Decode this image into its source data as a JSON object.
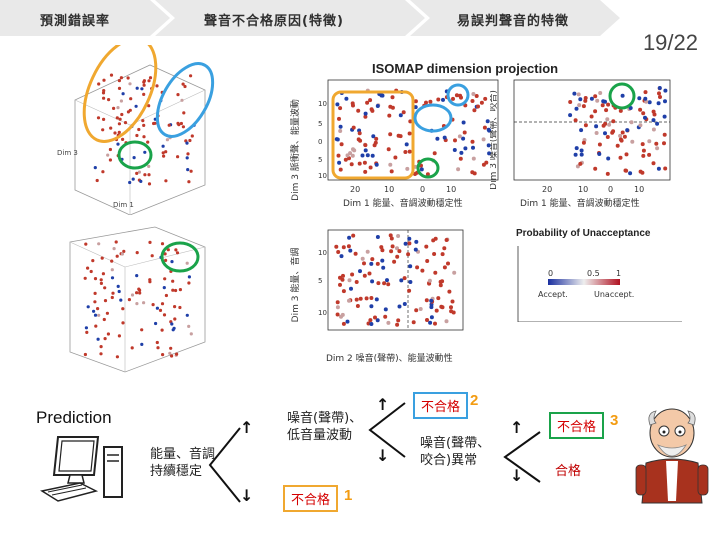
{
  "header": {
    "tab1": "預測錯誤率",
    "tab2": "聲音不合格原因(特徵)",
    "tab3": "易誤判聲音的特徵",
    "page_number": "19/22"
  },
  "projection": {
    "title": "ISOMAP dimension projection",
    "dim3_label_left": "Dim 3 脈衝聲、能量波動",
    "dim3_label_right": "Dim 3 噪音(聲帶、咬合)",
    "dim1_label": "Dim 1 能量、音調波動穩定性",
    "dim1_label_right": "Dim 1 能量、音調波動穩定性",
    "dim2_label": "Dim 2 噪音(聲帶)、能量波動性",
    "dim3_label_bottom": "Dim 3 能量、音調",
    "ticks_x": [
      "20",
      "10",
      "0",
      "10"
    ],
    "ticks_y": [
      "10",
      "5",
      "0",
      "5",
      "10"
    ],
    "legend_title": "Probability of Unacceptance",
    "legend_ticks": [
      "0",
      "0.5",
      "1"
    ],
    "legend_left": "Accept.",
    "legend_right": "Unaccept.",
    "cube_label_dim1": "Dim 1",
    "cube_label_dim3": "Dim 3"
  },
  "tree": {
    "prediction_label": "Prediction",
    "root_text_line1": "能量、音調",
    "root_text_line2": "持續穩定",
    "branch1_line1": "噪音(聲帶)、",
    "branch1_line2": "低音量波動",
    "fail_label": "不合格",
    "fail_num_1": "1",
    "fail_num_2": "2",
    "fail_num_3": "3",
    "branch2_line1": "噪音(聲帶、",
    "branch2_line2": "咬合)異常",
    "pass_label": "合格",
    "arrow_up": "↑",
    "arrow_down": "↓"
  },
  "colors": {
    "orange": "#f0a830",
    "blue": "#3aa0e0",
    "green": "#1aa34a",
    "red_point": "#c0392b",
    "blue_point": "#1f3fa8",
    "tab_bg": "#e8e8e8"
  }
}
